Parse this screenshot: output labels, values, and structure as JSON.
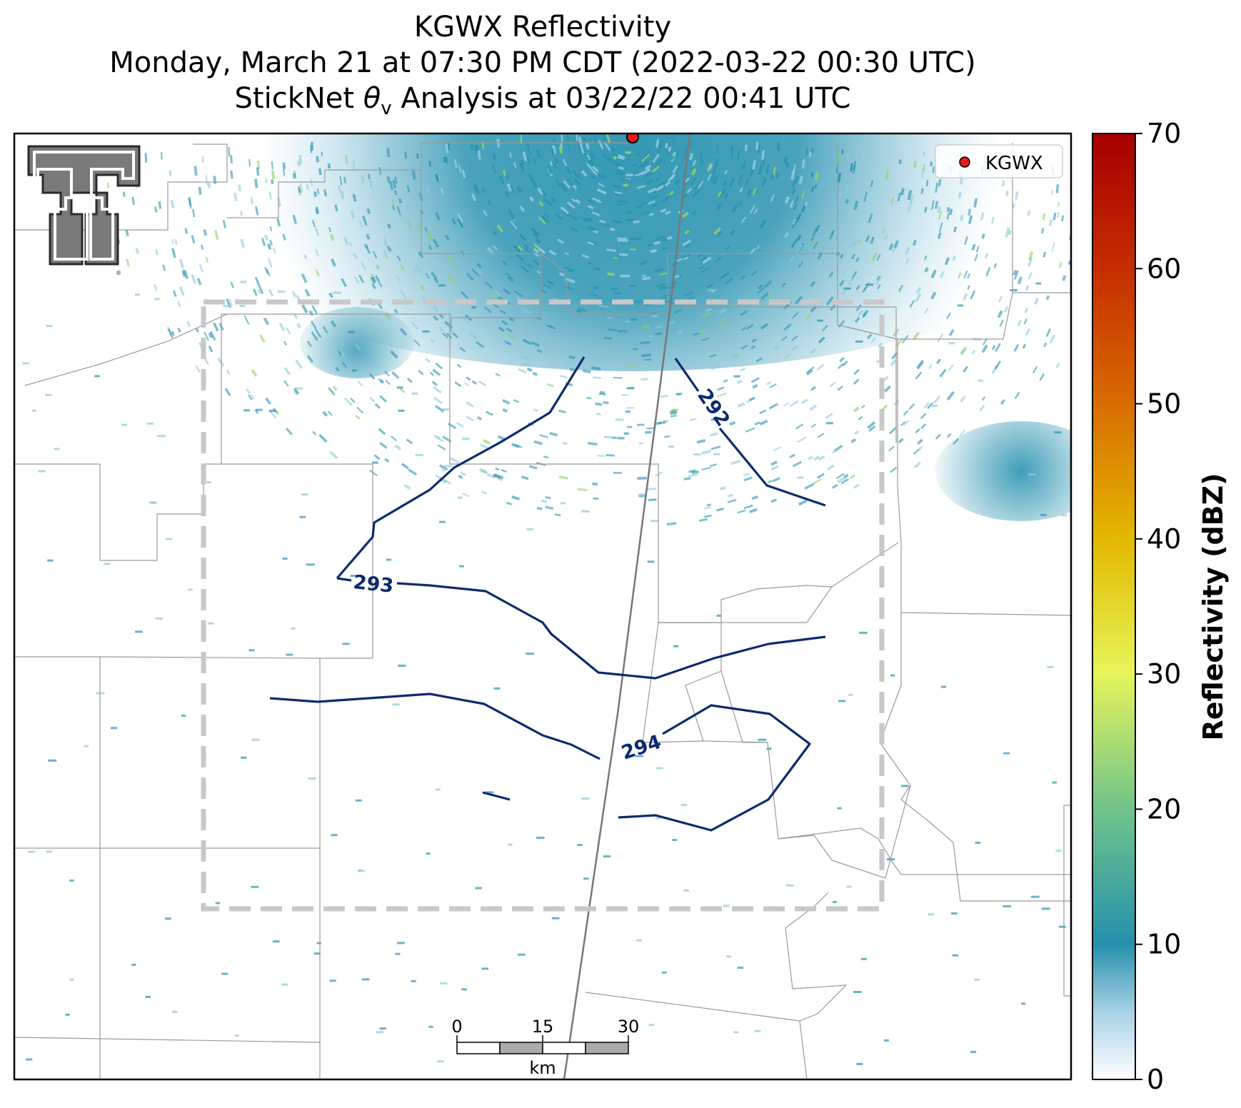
{
  "title": {
    "line1": "KGWX Reflectivity",
    "line2": "Monday, March 21 at 07:30 PM CDT (2022-03-22 00:30 UTC)",
    "line3_prefix": "StickNet ",
    "line3_theta": "θ",
    "line3_sub": "v",
    "line3_suffix": " Analysis at 03/22/22 00:41 UTC"
  },
  "legend": {
    "marker_label": "KGWX",
    "marker_color": "#e41a1c"
  },
  "contours": {
    "color": "#0d2a6e",
    "labels": [
      "292",
      "293",
      "294"
    ]
  },
  "scalebar": {
    "ticks": [
      "0",
      "15",
      "30"
    ],
    "unit": "km"
  },
  "colorbar": {
    "label": "Reflectivity (dBZ)",
    "ticks": [
      "0",
      "10",
      "20",
      "30",
      "40",
      "50",
      "60",
      "70"
    ],
    "range": [
      0,
      70
    ]
  },
  "logo": {
    "icon": "texas-tech-double-t-logo"
  },
  "colors": {
    "echo_main": "#2a93b0",
    "echo_light": "#8ec9dc",
    "echo_strong": "#8fcf6a",
    "county_lines": "#9a9a9a",
    "domain_box": "#c8c8c8"
  }
}
